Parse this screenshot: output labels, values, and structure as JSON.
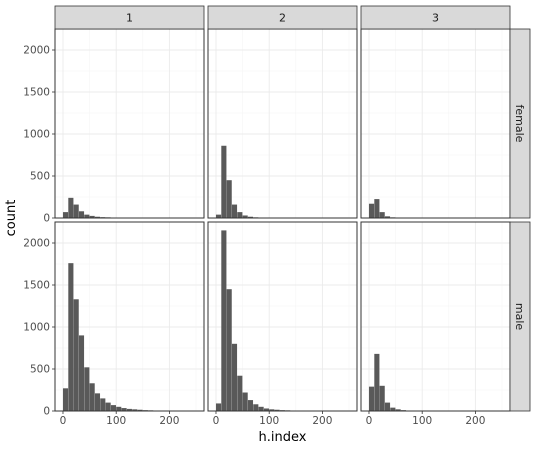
{
  "chart_data": {
    "type": "bar",
    "subtype": "faceted-histogram",
    "xlabel": "h.index",
    "ylabel": "count",
    "xlim": [
      -15,
      265
    ],
    "ylim": [
      0,
      2250
    ],
    "xticks": [
      0,
      100,
      200
    ],
    "yticks": [
      0,
      500,
      1000,
      1500,
      2000
    ],
    "bin_width": 10,
    "bin_starts": [
      0,
      10,
      20,
      30,
      40,
      50,
      60,
      70,
      80,
      90,
      100,
      110,
      120,
      130,
      140,
      150,
      160,
      170,
      180,
      190,
      200,
      210,
      220,
      230,
      240,
      250
    ],
    "column_strips": [
      "1",
      "2",
      "3"
    ],
    "row_strips": [
      "female",
      "male"
    ],
    "bar_color": "#595959",
    "grid": true,
    "panels": [
      {
        "col": "1",
        "row": "female",
        "values": [
          70,
          240,
          160,
          80,
          40,
          25,
          15,
          10,
          8,
          5,
          4,
          3,
          2,
          2,
          1,
          1,
          1,
          0,
          0,
          0,
          0,
          0,
          0,
          0,
          0,
          0
        ]
      },
      {
        "col": "2",
        "row": "female",
        "values": [
          40,
          860,
          450,
          160,
          70,
          30,
          15,
          8,
          5,
          3,
          2,
          1,
          1,
          0,
          0,
          0,
          0,
          0,
          0,
          0,
          0,
          0,
          0,
          0,
          0,
          0
        ]
      },
      {
        "col": "3",
        "row": "female",
        "values": [
          170,
          225,
          70,
          20,
          8,
          4,
          2,
          1,
          0,
          0,
          0,
          0,
          0,
          0,
          0,
          0,
          0,
          0,
          0,
          0,
          0,
          0,
          0,
          0,
          0,
          0
        ]
      },
      {
        "col": "1",
        "row": "male",
        "values": [
          270,
          1760,
          1330,
          900,
          520,
          330,
          210,
          150,
          100,
          70,
          50,
          35,
          25,
          20,
          15,
          10,
          8,
          5,
          4,
          3,
          2,
          1,
          1,
          0,
          0,
          0
        ]
      },
      {
        "col": "2",
        "row": "male",
        "values": [
          90,
          2150,
          1450,
          800,
          420,
          220,
          130,
          80,
          50,
          30,
          20,
          15,
          10,
          8,
          5,
          4,
          3,
          2,
          1,
          1,
          0,
          0,
          0,
          0,
          0,
          0
        ]
      },
      {
        "col": "3",
        "row": "male",
        "values": [
          290,
          680,
          300,
          100,
          40,
          20,
          10,
          5,
          3,
          2,
          1,
          0,
          0,
          0,
          0,
          0,
          0,
          0,
          0,
          0,
          0,
          0,
          0,
          0,
          0,
          0
        ]
      }
    ]
  }
}
